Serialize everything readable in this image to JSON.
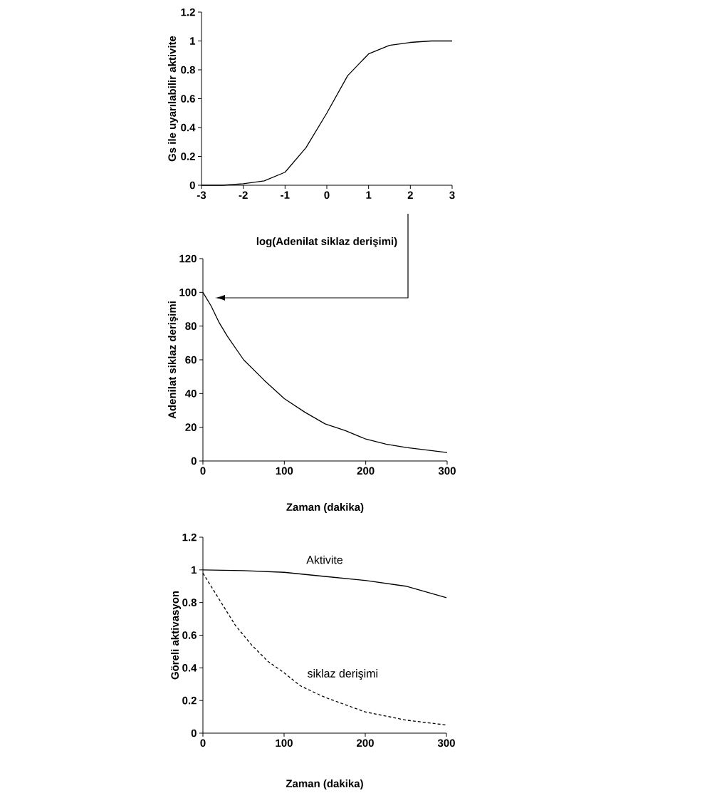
{
  "chart_data": [
    {
      "type": "line",
      "xlabel": "log(Adenilat siklaz derişimi)",
      "ylabel": "Gs ile uyarılabilir aktivite",
      "x": [
        -3,
        -2.5,
        -2,
        -1.5,
        -1,
        -0.5,
        0,
        0.5,
        1,
        1.5,
        2,
        2.5,
        3
      ],
      "series": [
        {
          "color": "#000000",
          "line_style": "solid",
          "values": [
            0,
            0,
            0.01,
            0.03,
            0.09,
            0.26,
            0.5,
            0.76,
            0.91,
            0.97,
            0.99,
            1.0,
            1.0
          ]
        }
      ],
      "xlim": [
        -3,
        3
      ],
      "ylim": [
        0,
        1.2
      ],
      "xticks": [
        -3,
        -2,
        -1,
        0,
        1,
        2,
        3
      ],
      "yticks": [
        0,
        0.2,
        0.4,
        0.6,
        0.8,
        1,
        1.2
      ]
    },
    {
      "type": "line",
      "xlabel": "Zaman (dakika)",
      "ylabel": "Adenilat siklaz derişimi",
      "x": [
        0,
        10,
        20,
        30,
        50,
        75,
        100,
        125,
        150,
        175,
        200,
        225,
        250,
        275,
        300
      ],
      "series": [
        {
          "color": "#000000",
          "line_style": "solid",
          "values": [
            100,
            92,
            82,
            74,
            60,
            48,
            37,
            29,
            22,
            18,
            13,
            10,
            8,
            6.5,
            5
          ]
        }
      ],
      "xlim": [
        0,
        300
      ],
      "ylim": [
        0,
        120
      ],
      "xticks": [
        0,
        100,
        200,
        300
      ],
      "yticks": [
        0,
        20,
        40,
        60,
        80,
        100,
        120
      ]
    },
    {
      "type": "line",
      "xlabel": "Zaman (dakika)",
      "ylabel": "Göreli aktivasyon",
      "xlim": [
        0,
        300
      ],
      "ylim": [
        0,
        1.2
      ],
      "xticks": [
        0,
        100,
        200,
        300
      ],
      "yticks": [
        0,
        0.2,
        0.4,
        0.6,
        0.8,
        1,
        1.2
      ],
      "series": [
        {
          "name": "Aktivite",
          "color": "#000000",
          "line_style": "solid",
          "x": [
            0,
            50,
            100,
            150,
            200,
            250,
            300
          ],
          "values": [
            1,
            0.995,
            0.985,
            0.96,
            0.935,
            0.9,
            0.83
          ]
        },
        {
          "name": "siklaz derişimi",
          "color": "#000000",
          "line_style": "dashed",
          "x": [
            0,
            20,
            40,
            60,
            80,
            100,
            120,
            150,
            200,
            250,
            300
          ],
          "values": [
            0.98,
            0.82,
            0.66,
            0.54,
            0.44,
            0.37,
            0.29,
            0.22,
            0.13,
            0.08,
            0.05
          ]
        }
      ]
    }
  ]
}
